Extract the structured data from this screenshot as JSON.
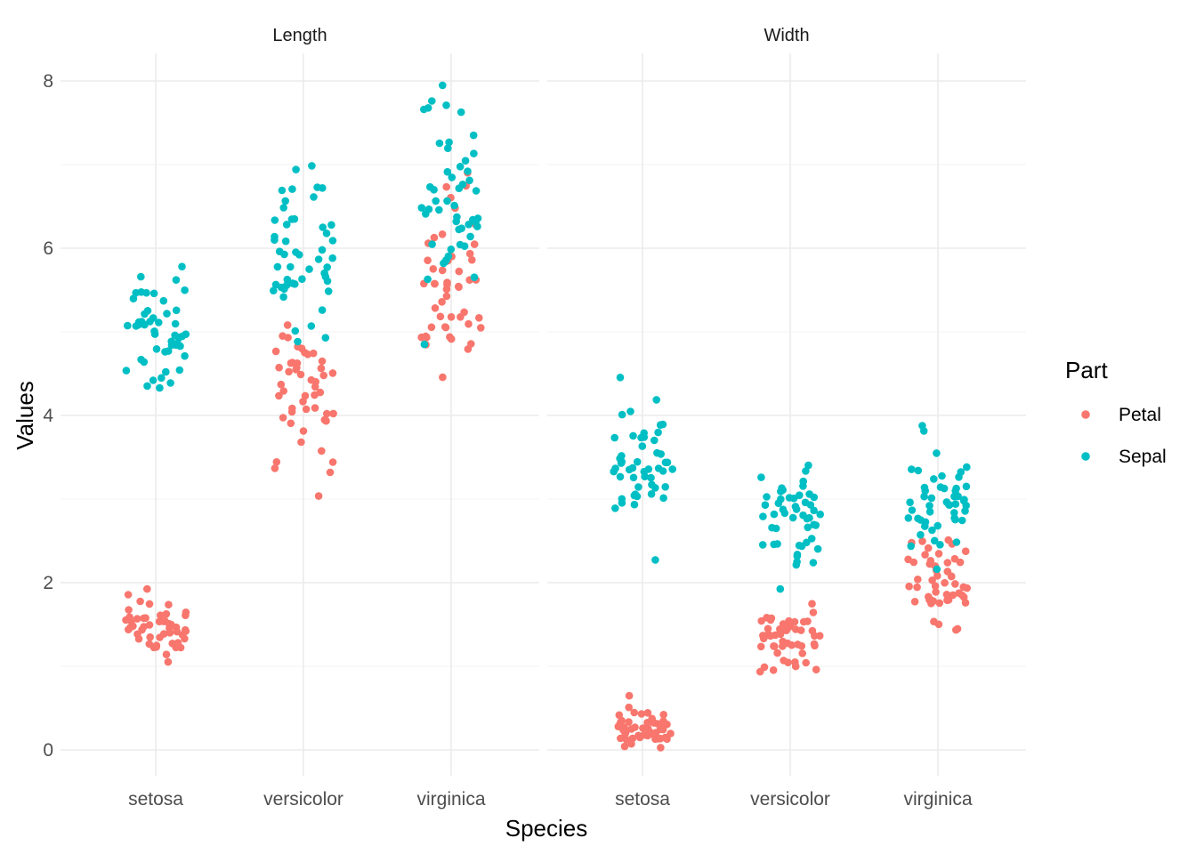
{
  "chart_data": {
    "type": "scatter",
    "subtype": "faceted jitter plot",
    "xlabel": "Species",
    "ylabel": "Values",
    "ylim": [
      0,
      8
    ],
    "yticks": [
      0,
      2,
      4,
      6,
      8
    ],
    "categories": [
      "setosa",
      "versicolor",
      "virginica"
    ],
    "legend": {
      "title": "Part",
      "placement": "right",
      "items": [
        {
          "name": "Petal",
          "color": "#F8766D"
        },
        {
          "name": "Sepal",
          "color": "#00BFC4"
        }
      ]
    },
    "facets": [
      {
        "label": "Length",
        "series": [
          {
            "name": "Petal",
            "data": {
              "setosa": [
                1.4,
                1.4,
                1.3,
                1.5,
                1.4,
                1.7,
                1.4,
                1.5,
                1.4,
                1.5,
                1.5,
                1.6,
                1.4,
                1.1,
                1.2,
                1.5,
                1.3,
                1.4,
                1.7,
                1.5,
                1.7,
                1.5,
                1.0,
                1.7,
                1.9,
                1.6,
                1.6,
                1.5,
                1.4,
                1.6,
                1.6,
                1.5,
                1.5,
                1.4,
                1.5,
                1.2,
                1.3,
                1.4,
                1.3,
                1.5,
                1.3,
                1.3,
                1.3,
                1.6,
                1.9,
                1.4,
                1.6,
                1.4,
                1.5,
                1.4
              ],
              "versicolor": [
                4.7,
                4.5,
                4.9,
                4.0,
                4.6,
                4.5,
                4.7,
                3.3,
                4.6,
                3.9,
                3.5,
                4.2,
                4.0,
                4.7,
                3.6,
                4.4,
                4.5,
                4.1,
                4.5,
                3.9,
                4.8,
                4.0,
                4.9,
                4.7,
                4.3,
                4.4,
                4.8,
                5.0,
                4.5,
                3.5,
                3.8,
                3.7,
                3.9,
                5.1,
                4.5,
                4.5,
                4.7,
                4.4,
                4.1,
                4.0,
                4.4,
                4.6,
                4.0,
                3.3,
                4.2,
                4.2,
                4.2,
                4.3,
                3.0,
                4.1
              ],
              "virginica": [
                6.0,
                5.1,
                5.9,
                5.6,
                5.8,
                6.6,
                4.5,
                6.3,
                5.8,
                6.1,
                5.1,
                5.3,
                5.5,
                5.0,
                5.1,
                5.3,
                5.5,
                6.7,
                6.9,
                5.0,
                5.7,
                4.9,
                6.7,
                4.9,
                5.7,
                6.0,
                4.8,
                4.9,
                5.6,
                5.8,
                6.1,
                6.4,
                5.6,
                5.1,
                5.6,
                6.1,
                5.6,
                5.5,
                4.8,
                5.4,
                5.6,
                5.1,
                5.1,
                5.9,
                5.7,
                5.2,
                5.0,
                5.2,
                5.4,
                5.1
              ]
            }
          },
          {
            "name": "Sepal",
            "data": {
              "setosa": [
                5.1,
                4.9,
                4.7,
                4.6,
                5.0,
                5.4,
                4.6,
                5.0,
                4.4,
                4.9,
                5.4,
                4.8,
                4.8,
                4.3,
                5.8,
                5.7,
                5.4,
                5.1,
                5.7,
                5.1,
                5.4,
                5.1,
                4.6,
                5.1,
                4.8,
                5.0,
                5.0,
                5.2,
                5.2,
                4.7,
                4.8,
                5.4,
                5.2,
                5.5,
                4.9,
                5.0,
                5.5,
                4.9,
                4.4,
                5.1,
                5.0,
                4.5,
                4.4,
                5.0,
                5.1,
                4.8,
                5.1,
                4.6,
                5.3,
                5.0
              ],
              "versicolor": [
                7.0,
                6.4,
                6.9,
                5.5,
                6.5,
                5.7,
                6.3,
                4.9,
                6.6,
                5.2,
                5.0,
                5.9,
                6.0,
                6.1,
                5.6,
                6.7,
                5.6,
                5.8,
                6.2,
                5.6,
                5.9,
                6.1,
                6.3,
                6.1,
                6.4,
                6.6,
                6.8,
                6.7,
                6.0,
                5.7,
                5.5,
                5.5,
                5.8,
                6.0,
                5.4,
                6.0,
                6.7,
                6.3,
                5.6,
                5.5,
                5.5,
                6.1,
                5.8,
                5.0,
                5.6,
                5.7,
                5.7,
                6.2,
                5.1,
                5.7
              ],
              "virginica": [
                6.3,
                5.8,
                7.1,
                6.3,
                6.5,
                7.6,
                4.9,
                7.3,
                6.7,
                7.2,
                6.5,
                6.4,
                6.8,
                5.7,
                5.8,
                6.4,
                6.5,
                7.7,
                7.7,
                6.0,
                6.9,
                5.6,
                7.7,
                6.3,
                6.7,
                7.2,
                6.2,
                6.1,
                6.4,
                7.2,
                7.4,
                7.9,
                6.4,
                6.3,
                6.1,
                7.7,
                6.3,
                6.4,
                6.0,
                6.9,
                6.7,
                6.9,
                5.8,
                6.8,
                6.7,
                6.7,
                6.3,
                6.5,
                6.2,
                5.9
              ]
            }
          }
        ]
      },
      {
        "label": "Width",
        "series": [
          {
            "name": "Petal",
            "data": {
              "setosa": [
                0.2,
                0.2,
                0.2,
                0.2,
                0.2,
                0.4,
                0.3,
                0.2,
                0.2,
                0.1,
                0.2,
                0.2,
                0.1,
                0.1,
                0.2,
                0.4,
                0.4,
                0.3,
                0.3,
                0.3,
                0.2,
                0.4,
                0.2,
                0.5,
                0.2,
                0.2,
                0.4,
                0.2,
                0.2,
                0.2,
                0.2,
                0.4,
                0.1,
                0.2,
                0.2,
                0.2,
                0.2,
                0.1,
                0.2,
                0.2,
                0.3,
                0.3,
                0.2,
                0.6,
                0.4,
                0.3,
                0.2,
                0.2,
                0.2,
                0.2
              ],
              "versicolor": [
                1.4,
                1.5,
                1.5,
                1.3,
                1.5,
                1.3,
                1.6,
                1.0,
                1.3,
                1.4,
                1.0,
                1.5,
                1.0,
                1.4,
                1.3,
                1.4,
                1.5,
                1.0,
                1.5,
                1.1,
                1.8,
                1.3,
                1.5,
                1.2,
                1.3,
                1.4,
                1.4,
                1.7,
                1.5,
                1.0,
                1.1,
                1.0,
                1.2,
                1.6,
                1.5,
                1.6,
                1.5,
                1.3,
                1.3,
                1.3,
                1.2,
                1.4,
                1.2,
                1.0,
                1.3,
                1.2,
                1.3,
                1.3,
                1.1,
                1.3
              ],
              "virginica": [
                2.5,
                1.9,
                2.1,
                1.8,
                2.2,
                2.1,
                1.7,
                1.8,
                1.8,
                2.5,
                2.0,
                1.9,
                2.1,
                2.0,
                2.4,
                2.3,
                1.8,
                2.2,
                2.3,
                1.5,
                2.3,
                2.0,
                2.0,
                1.8,
                2.1,
                1.8,
                1.8,
                1.8,
                2.1,
                1.6,
                1.9,
                2.0,
                2.2,
                1.5,
                1.4,
                2.3,
                2.4,
                1.8,
                1.8,
                2.1,
                2.4,
                2.3,
                1.9,
                2.3,
                2.5,
                2.3,
                1.9,
                2.0,
                2.3,
                1.8
              ]
            }
          },
          {
            "name": "Sepal",
            "data": {
              "setosa": [
                3.5,
                3.0,
                3.2,
                3.1,
                3.6,
                3.9,
                3.4,
                3.4,
                2.9,
                3.1,
                3.7,
                3.4,
                3.0,
                3.0,
                4.0,
                4.4,
                3.9,
                3.5,
                3.8,
                3.8,
                3.4,
                3.7,
                3.6,
                3.3,
                3.4,
                3.0,
                3.4,
                3.5,
                3.4,
                3.2,
                3.1,
                3.4,
                4.1,
                4.2,
                3.1,
                3.2,
                3.5,
                3.6,
                3.0,
                3.4,
                3.5,
                2.3,
                3.2,
                3.5,
                3.8,
                3.0,
                3.8,
                3.2,
                3.7,
                3.3
              ],
              "versicolor": [
                3.2,
                3.2,
                3.1,
                2.3,
                2.8,
                2.8,
                3.3,
                2.4,
                2.9,
                2.7,
                2.0,
                3.0,
                2.2,
                2.9,
                2.9,
                3.1,
                3.0,
                2.7,
                2.2,
                2.5,
                3.2,
                2.8,
                2.5,
                2.8,
                2.9,
                3.0,
                2.8,
                3.0,
                2.9,
                2.6,
                2.4,
                2.4,
                2.7,
                2.7,
                3.0,
                3.4,
                3.1,
                2.3,
                3.0,
                2.5,
                2.6,
                3.0,
                2.6,
                2.3,
                2.7,
                3.0,
                2.9,
                2.9,
                2.5,
                2.8
              ],
              "virginica": [
                3.3,
                2.7,
                3.0,
                2.9,
                3.0,
                3.0,
                2.5,
                2.9,
                2.5,
                3.6,
                3.2,
                2.7,
                3.0,
                2.5,
                2.8,
                3.2,
                3.0,
                3.8,
                2.6,
                2.2,
                3.2,
                2.8,
                2.8,
                2.7,
                3.3,
                3.2,
                2.8,
                3.0,
                2.8,
                3.0,
                2.8,
                3.8,
                2.8,
                2.8,
                2.6,
                3.0,
                3.4,
                3.1,
                3.0,
                3.1,
                3.1,
                3.1,
                2.7,
                3.2,
                3.3,
                3.0,
                2.5,
                3.0,
                3.4,
                3.0
              ]
            }
          }
        ]
      }
    ]
  }
}
